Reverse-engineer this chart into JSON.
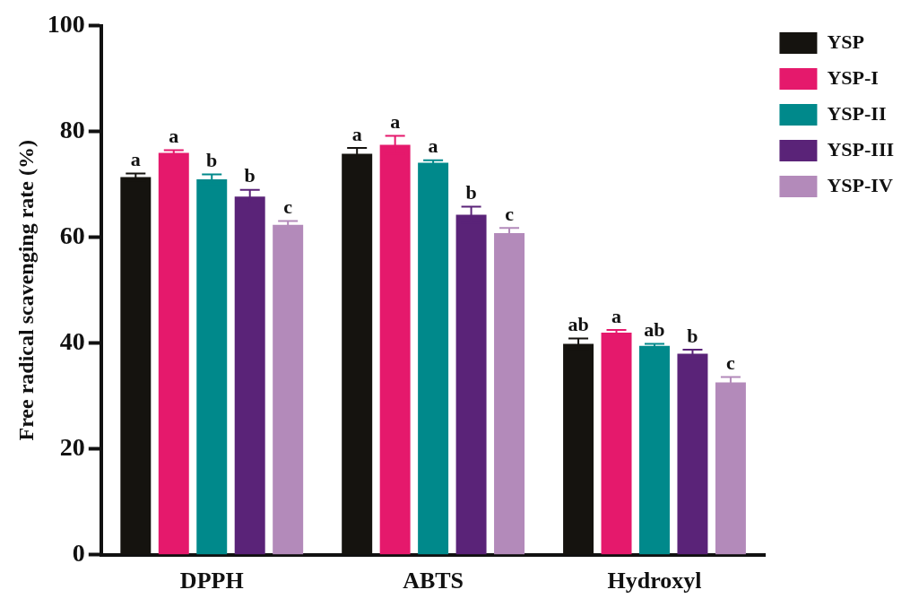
{
  "chart_data": {
    "type": "bar",
    "ylabel": "Free radical scavenging rate (%)",
    "categories": [
      "DPPH",
      "ABTS",
      "Hydroxyl"
    ],
    "series": [
      {
        "name": "YSP",
        "color": "#15130f",
        "values": [
          71.4,
          75.8,
          39.9
        ],
        "errors": [
          0.7,
          1.1,
          1.0
        ],
        "value_labels": [
          "a",
          "a",
          "ab"
        ]
      },
      {
        "name": "YSP-I",
        "color": "#e5196c",
        "values": [
          76.0,
          77.5,
          42.0
        ],
        "errors": [
          0.5,
          1.7,
          0.5
        ],
        "value_labels": [
          "a",
          "a",
          "a"
        ]
      },
      {
        "name": "YSP-II",
        "color": "#00898b",
        "values": [
          71.0,
          74.1,
          39.5
        ],
        "errors": [
          0.9,
          0.5,
          0.4
        ],
        "value_labels": [
          "b",
          "a",
          "ab"
        ]
      },
      {
        "name": "YSP-III",
        "color": "#5a2378",
        "values": [
          67.7,
          64.3,
          38.0
        ],
        "errors": [
          1.3,
          1.5,
          0.8
        ],
        "value_labels": [
          "b",
          "b",
          "b"
        ]
      },
      {
        "name": "YSP-IV",
        "color": "#b38aba",
        "values": [
          62.4,
          60.8,
          32.6
        ],
        "errors": [
          0.7,
          1.0,
          1.0
        ],
        "value_labels": [
          "c",
          "c",
          "c"
        ]
      }
    ],
    "ylim": [
      0,
      100
    ],
    "yticks": [
      0,
      20,
      40,
      60,
      80,
      100
    ],
    "grid": false,
    "legend": "top right"
  }
}
